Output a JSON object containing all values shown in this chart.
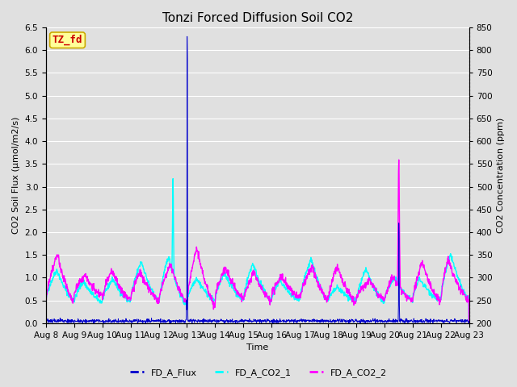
{
  "title": "Tonzi Forced Diffusion Soil CO2",
  "xlabel": "Time",
  "ylabel_left": "CO2 Soil Flux (μmol/m2/s)",
  "ylabel_right": "CO2 Concentration (ppm)",
  "ylim_left": [
    0.0,
    6.5
  ],
  "ylim_right": [
    200,
    850
  ],
  "yticks_left": [
    0.0,
    0.5,
    1.0,
    1.5,
    2.0,
    2.5,
    3.0,
    3.5,
    4.0,
    4.5,
    5.0,
    5.5,
    6.0,
    6.5
  ],
  "yticks_right": [
    200,
    250,
    300,
    350,
    400,
    450,
    500,
    550,
    600,
    650,
    700,
    750,
    800,
    850
  ],
  "bg_color": "#e0e0e0",
  "plot_bg_color": "#e0e0e0",
  "grid_color": "#ffffff",
  "flux_color": "#0000cc",
  "co2_1_color": "#00ffff",
  "co2_2_color": "#ff00ff",
  "flux_linewidth": 0.7,
  "co2_linewidth": 1.0,
  "watermark_text": "TZ_fd",
  "watermark_color": "#cc0000",
  "watermark_bg": "#ffff99",
  "watermark_border": "#ccaa00",
  "watermark_fontsize": 9,
  "n_days": 15,
  "samples_per_day": 96,
  "xticklabels": [
    "Aug 8",
    "Aug 9",
    "Aug 10",
    "Aug 11",
    "Aug 12",
    "Aug 13",
    "Aug 14",
    "Aug 15",
    "Aug 16",
    "Aug 17",
    "Aug 18",
    "Aug 19",
    "Aug 20",
    "Aug 21",
    "Aug 22",
    "Aug 23"
  ],
  "legend_entries": [
    "FD_A_Flux",
    "FD_A_CO2_1",
    "FD_A_CO2_2"
  ],
  "title_fontsize": 11,
  "axis_label_fontsize": 8,
  "tick_fontsize": 7.5,
  "legend_fontsize": 8
}
